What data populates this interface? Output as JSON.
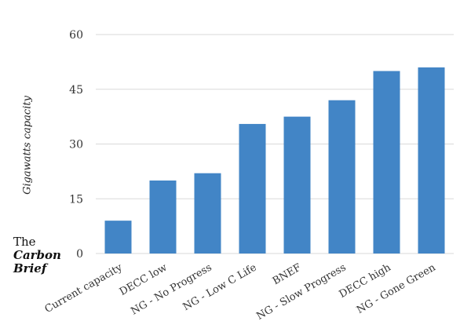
{
  "chart_data": {
    "type": "bar",
    "ylabel": "Gigawatts capacity",
    "categories": [
      "Current capacity",
      "DECC low",
      "NG - No Progress",
      "NG - Low C Life",
      "BNEF",
      "NG - Slow Progress",
      "DECC high",
      "NG - Gone Green"
    ],
    "values": [
      9,
      20,
      22,
      35.5,
      37.5,
      42,
      50,
      51
    ],
    "ylim": [
      0,
      60
    ],
    "yticks": [
      0,
      15,
      30,
      45,
      60
    ],
    "grid": true,
    "bar_color": "#4285c6",
    "grid_color": "#d9d9d9"
  },
  "logo": {
    "line1": "The",
    "line2": "Carbon",
    "line3": "Brief"
  }
}
